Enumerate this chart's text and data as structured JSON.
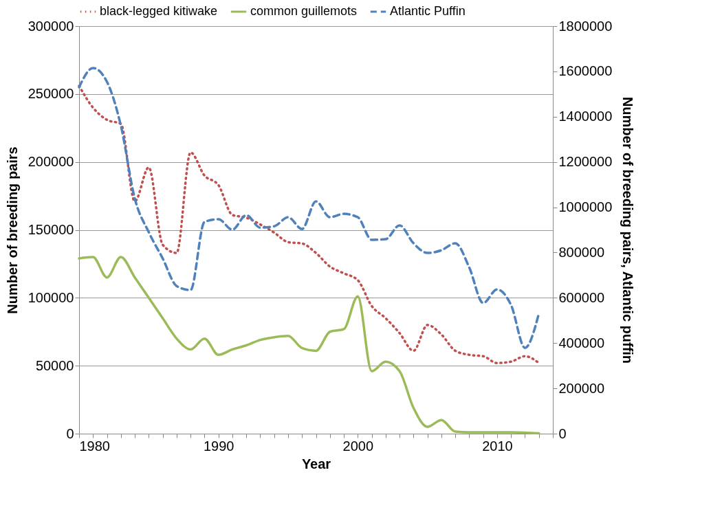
{
  "chart_data": {
    "type": "line",
    "xlabel": "Year",
    "ylabel": "Number of breeding pairs",
    "y2label": "Number of breeding pairs, Atlantic puffin",
    "x": [
      1980,
      1981,
      1982,
      1983,
      1984,
      1985,
      1986,
      1987,
      1988,
      1989,
      1990,
      1991,
      1992,
      1993,
      1994,
      1995,
      1996,
      1997,
      1998,
      1999,
      2000,
      2001,
      2002,
      2003,
      2004,
      2005,
      2006,
      2007,
      2008,
      2009,
      2010,
      2011,
      2012,
      2013
    ],
    "series": [
      {
        "name": "black-legged kitiwake",
        "color": "#c0504d",
        "line_style": "dotted",
        "values": [
          256000,
          240000,
          231000,
          228000,
          171000,
          196000,
          139000,
          133000,
          207000,
          190000,
          183000,
          161000,
          159000,
          154000,
          148000,
          141000,
          140000,
          133000,
          123000,
          118000,
          113000,
          94000,
          85000,
          74000,
          61000,
          80000,
          73000,
          61000,
          58000,
          57000,
          52000,
          53000,
          57000,
          52000
        ]
      },
      {
        "name": "common guillemots",
        "color": "#9bbb59",
        "line_style": "solid",
        "values": [
          129000,
          130000,
          115000,
          130000,
          115000,
          100000,
          85000,
          70000,
          62000,
          70000,
          58000,
          62000,
          65000,
          69000,
          71000,
          72000,
          63000,
          61000,
          75000,
          77000,
          101000,
          46000,
          53000,
          46000,
          19000,
          5000,
          10000,
          1500,
          1000,
          1000,
          1000,
          1000,
          800,
          300
        ]
      },
      {
        "name": "Atlantic Puffin",
        "color": "#4f81bd",
        "line_style": "dashed",
        "axis": "y2",
        "values": [
          1530000,
          1615000,
          1554000,
          1360000,
          1038000,
          890000,
          774000,
          652000,
          634000,
          935000,
          947000,
          901000,
          965000,
          910000,
          916000,
          956000,
          904000,
          1026000,
          956000,
          971000,
          956000,
          856000,
          859000,
          920000,
          841000,
          798000,
          810000,
          841000,
          734000,
          577000,
          637000,
          568000,
          379000,
          531000
        ]
      }
    ],
    "xlim": [
      1980,
      2014
    ],
    "xticks": [
      1980,
      {
        "value": 1981,
        "label": null
      },
      {
        "value": 1982,
        "label": null
      },
      {
        "value": 1983,
        "label": null
      },
      {
        "value": 1984,
        "label": null
      },
      {
        "value": 1985,
        "label": null
      },
      {
        "value": 1986,
        "label": null
      },
      {
        "value": 1987,
        "label": null
      },
      {
        "value": 1988,
        "label": null
      },
      {
        "value": 1989,
        "label": null
      },
      1990,
      {
        "value": 1991,
        "label": null
      },
      {
        "value": 1992,
        "label": null
      },
      {
        "value": 1993,
        "label": null
      },
      {
        "value": 1994,
        "label": null
      },
      {
        "value": 1995,
        "label": null
      },
      {
        "value": 1996,
        "label": null
      },
      {
        "value": 1997,
        "label": null
      },
      {
        "value": 1998,
        "label": null
      },
      {
        "value": 1999,
        "label": null
      },
      2000,
      {
        "value": 2001,
        "label": null
      },
      {
        "value": 2002,
        "label": null
      },
      {
        "value": 2003,
        "label": null
      },
      {
        "value": 2004,
        "label": null
      },
      {
        "value": 2005,
        "label": null
      },
      {
        "value": 2006,
        "label": null
      },
      {
        "value": 2007,
        "label": null
      },
      {
        "value": 2008,
        "label": null
      },
      {
        "value": 2009,
        "label": null
      },
      2010,
      {
        "value": 2011,
        "label": null
      },
      {
        "value": 2012,
        "label": null
      },
      {
        "value": 2013,
        "label": null
      },
      {
        "value": 2014,
        "label": null
      }
    ],
    "ylim": [
      0,
      300000
    ],
    "yticks": [
      0,
      50000,
      100000,
      150000,
      200000,
      250000,
      300000
    ],
    "y2lim": [
      0,
      1800000
    ],
    "y2ticks": [
      0,
      200000,
      400000,
      600000,
      800000,
      1000000,
      1200000,
      1400000,
      1600000,
      1800000
    ],
    "grid": "y",
    "legend": "top"
  }
}
